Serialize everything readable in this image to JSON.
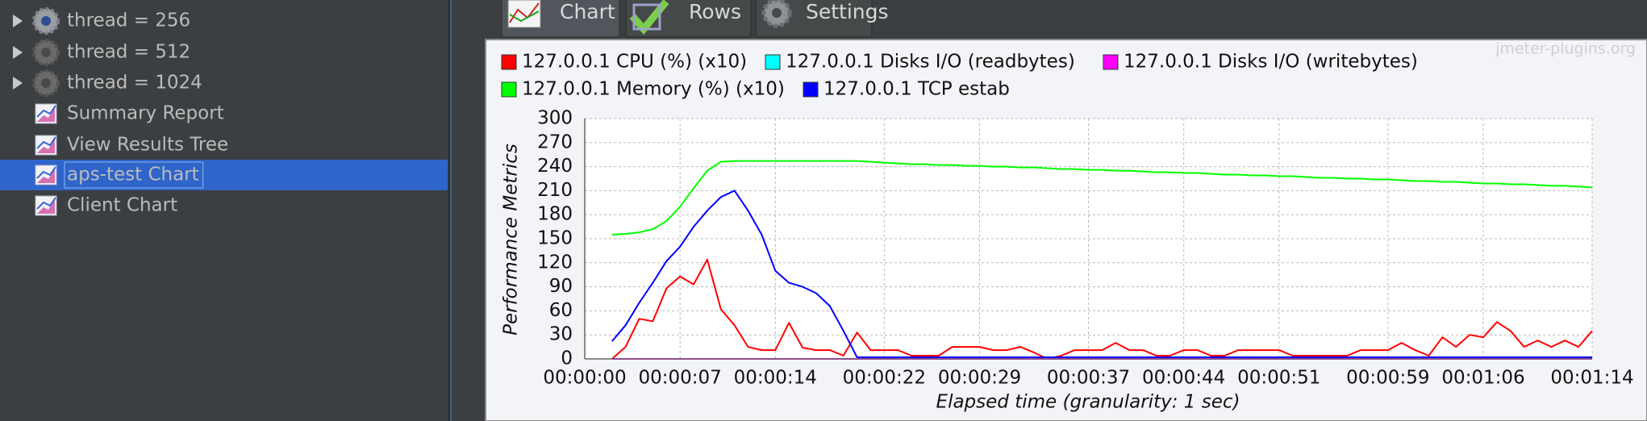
{
  "tree": {
    "items": [
      {
        "label": "thread = 256",
        "disabled": false
      },
      {
        "label": "thread = 512",
        "disabled": true
      },
      {
        "label": "thread = 1024",
        "disabled": true
      },
      {
        "label": "Summary Report",
        "disabled": false
      },
      {
        "label": "View Results Tree",
        "disabled": false
      },
      {
        "label": "aps-test Chart",
        "disabled": false
      },
      {
        "label": "Client Chart",
        "disabled": false
      }
    ],
    "selected": 5
  },
  "tabs": [
    "Chart",
    "Rows",
    "Settings"
  ],
  "chart_data": {
    "type": "line",
    "watermark": "jmeter-plugins.org",
    "xlabel": "Elapsed time (granularity: 1 sec)",
    "ylabel": "Performance Metrics",
    "xlim": [
      0,
      74
    ],
    "xticks": [
      {
        "value": 0,
        "label": "00:00:00"
      },
      {
        "value": 7,
        "label": "00:00:07"
      },
      {
        "value": 14,
        "label": "00:00:14"
      },
      {
        "value": 22,
        "label": "00:00:22"
      },
      {
        "value": 29,
        "label": "00:00:29"
      },
      {
        "value": 37,
        "label": "00:00:37"
      },
      {
        "value": 44,
        "label": "00:00:44"
      },
      {
        "value": 51,
        "label": "00:00:51"
      },
      {
        "value": 59,
        "label": "00:00:59"
      },
      {
        "value": 66,
        "label": "00:01:06"
      },
      {
        "value": 74,
        "label": "00:01:14"
      }
    ],
    "ylim": [
      0,
      300
    ],
    "yticks": [
      0,
      30,
      60,
      90,
      120,
      150,
      180,
      210,
      240,
      270,
      300
    ],
    "grid": true,
    "x": [
      2,
      3,
      4,
      5,
      6,
      7,
      8,
      9,
      10,
      11,
      12,
      13,
      14,
      15,
      16,
      17,
      18,
      19,
      20,
      21,
      22,
      23,
      24,
      25,
      26,
      27,
      28,
      29,
      30,
      31,
      32,
      33,
      34,
      35,
      36,
      37,
      38,
      39,
      40,
      41,
      42,
      43,
      44,
      45,
      46,
      47,
      48,
      49,
      50,
      51,
      52,
      53,
      54,
      55,
      56,
      57,
      58,
      59,
      60,
      61,
      62,
      63,
      64,
      65,
      66,
      67,
      68,
      69,
      70,
      71,
      72,
      73,
      74
    ],
    "series": [
      {
        "name": "127.0.0.1 CPU (%) (x10)",
        "color": "#ff0000",
        "values": [
          0,
          15,
          50,
          47,
          88,
          103,
          93,
          124,
          62,
          42,
          15,
          11,
          11,
          45,
          14,
          11,
          11,
          4,
          33,
          11,
          11,
          11,
          4,
          4,
          4,
          15,
          15,
          15,
          11,
          11,
          15,
          8,
          0,
          4,
          11,
          11,
          11,
          20,
          11,
          11,
          4,
          4,
          11,
          11,
          4,
          4,
          11,
          11,
          11,
          11,
          4,
          4,
          4,
          4,
          4,
          11,
          11,
          11,
          20,
          11,
          4,
          27,
          15,
          30,
          27,
          46,
          35,
          15,
          23,
          15,
          23,
          15,
          35
        ]
      },
      {
        "name": "127.0.0.1 Disks I/O (readbytes)",
        "color": "#00ffff",
        "values": [
          0,
          0,
          0,
          0,
          0,
          0,
          0,
          0,
          0,
          0,
          0,
          0,
          0,
          0,
          0,
          0,
          0,
          0,
          0,
          0,
          0,
          0,
          0,
          0,
          0,
          0,
          0,
          0,
          0,
          0,
          0,
          0,
          0,
          0,
          0,
          0,
          0,
          0,
          0,
          0,
          0,
          0,
          0,
          0,
          0,
          0,
          0,
          0,
          0,
          0,
          0,
          0,
          0,
          0,
          0,
          0,
          0,
          0,
          0,
          0,
          0,
          0,
          0,
          0,
          0,
          0,
          0,
          0,
          0,
          0,
          0,
          0,
          0
        ]
      },
      {
        "name": "127.0.0.1 Disks I/O (writebytes)",
        "color": "#ff00ff",
        "values": [
          0,
          0,
          0,
          0,
          0,
          0,
          0,
          0,
          0,
          0,
          0,
          0,
          0,
          0,
          0,
          0,
          0,
          0,
          0,
          0,
          0,
          0,
          0,
          0,
          0,
          0,
          0,
          0,
          0,
          0,
          0,
          0,
          0,
          0,
          0,
          0,
          0,
          0,
          0,
          0,
          0,
          0,
          0,
          0,
          0,
          0,
          0,
          0,
          0,
          0,
          0,
          0,
          0,
          0,
          0,
          0,
          0,
          0,
          0,
          0,
          0,
          0,
          0,
          0,
          0,
          0,
          0,
          0,
          0,
          0,
          0,
          0,
          0
        ]
      },
      {
        "name": "127.0.0.1 Memory (%) (x10)",
        "color": "#00ff00",
        "values": [
          155,
          156,
          158,
          162,
          172,
          190,
          213,
          235,
          246,
          247,
          247,
          247,
          247,
          247,
          247,
          247,
          247,
          247,
          247,
          246,
          245,
          244,
          243,
          243,
          242,
          242,
          241,
          241,
          240,
          240,
          239,
          239,
          238,
          237,
          237,
          236,
          236,
          235,
          235,
          234,
          233,
          233,
          232,
          232,
          231,
          230,
          230,
          229,
          229,
          228,
          228,
          227,
          226,
          226,
          225,
          225,
          224,
          224,
          223,
          222,
          222,
          221,
          221,
          220,
          219,
          219,
          218,
          218,
          217,
          216,
          216,
          215,
          214
        ]
      },
      {
        "name": "127.0.0.1 TCP estab",
        "color": "#0000ff",
        "values": [
          22,
          42,
          70,
          95,
          122,
          140,
          165,
          185,
          202,
          210,
          185,
          155,
          110,
          95,
          90,
          82,
          66,
          35,
          2,
          2,
          2,
          2,
          2,
          2,
          2,
          2,
          2,
          2,
          2,
          2,
          2,
          2,
          2,
          2,
          2,
          2,
          2,
          2,
          2,
          2,
          2,
          2,
          2,
          2,
          2,
          2,
          2,
          2,
          2,
          2,
          2,
          2,
          2,
          2,
          2,
          2,
          2,
          2,
          2,
          2,
          2,
          2,
          2,
          2,
          2,
          2,
          2,
          2,
          2,
          2,
          2,
          2,
          2
        ]
      }
    ]
  }
}
